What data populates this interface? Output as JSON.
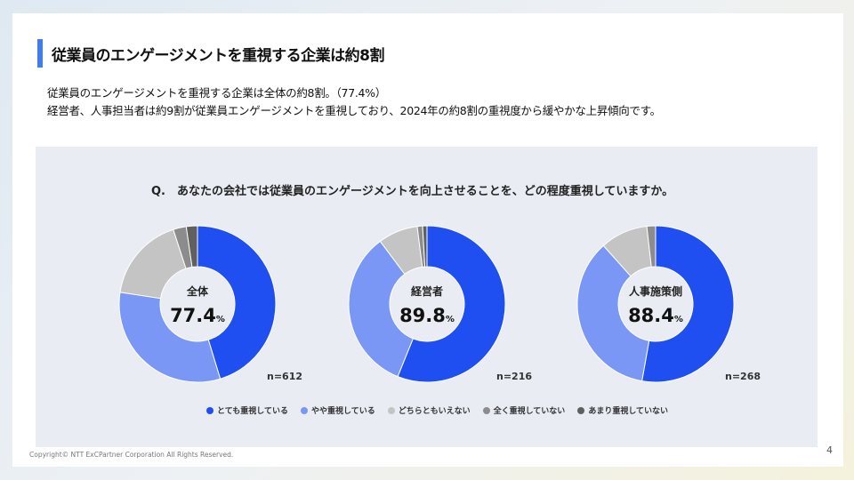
{
  "title": "従業員のエンゲージメントを重視する企業は約8割",
  "description": [
    "従業員のエンゲージメントを重視する企業は全体の約8割。（77.4%）",
    "経営者、人事担当者は約9割が従業員エンゲージメントを重視しており、2024年の約8割の重視度から緩やかな上昇傾向です。"
  ],
  "question": "Q.　あなたの会社では従業員のエンゲージメントを向上させることを、どの程度重視していますか。",
  "copyright": "Copyright© NTT ExCPartner Corporation All Rights Reserved.",
  "page_number": "4",
  "chart_data": {
    "type": "pie",
    "donut": true,
    "legend_position": "bottom",
    "categories": [
      "とても重視している",
      "やや重視している",
      "どちらともいえない",
      "全く重視していない",
      "あまり重視していない"
    ],
    "colors": [
      "#1f4ff0",
      "#7a97f5",
      "#c4c4c4",
      "#8c8c8c",
      "#5f5f5f"
    ],
    "charts": [
      {
        "label": "全体",
        "value_label": "77.4",
        "unit": "%",
        "n": "n=612",
        "values": [
          45.3,
          32.1,
          17.6,
          2.7,
          2.3
        ]
      },
      {
        "label": "経営者",
        "value_label": "89.8",
        "unit": "%",
        "n": "n=216",
        "values": [
          56.1,
          33.7,
          8.2,
          1.1,
          0.9
        ]
      },
      {
        "label": "人事施策側",
        "value_label": "88.4",
        "unit": "%",
        "n": "n=268",
        "values": [
          52.8,
          35.6,
          9.8,
          1.8,
          0
        ]
      }
    ]
  }
}
